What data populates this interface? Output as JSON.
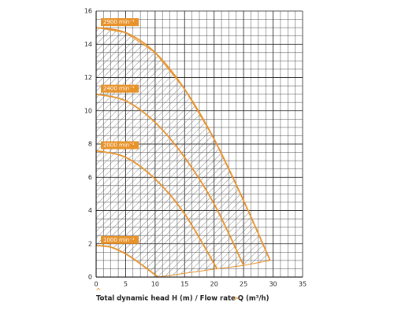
{
  "chart_data": {
    "type": "line",
    "x_label": "Total dynamic head H (m) / Flow rate Q (m³/h)",
    "xlim": [
      0,
      35
    ],
    "xticks": [
      0,
      5,
      10,
      15,
      20,
      25,
      30,
      35
    ],
    "ylim": [
      0,
      16
    ],
    "yticks": [
      0,
      2,
      4,
      6,
      8,
      10,
      12,
      14,
      16
    ],
    "grid": true,
    "series": [
      {
        "name": "2900 min⁻¹",
        "color": "#e8922a",
        "x": [
          0,
          5,
          10,
          15,
          20,
          25,
          29.5
        ],
        "values": [
          15,
          14.7,
          13.5,
          11.3,
          8.3,
          4.6,
          1
        ]
      },
      {
        "name": "2400 min⁻¹",
        "color": "#e8922a",
        "x": [
          0,
          5,
          10,
          15,
          20,
          25
        ],
        "values": [
          11,
          10.6,
          9.3,
          7.2,
          4.4,
          0.7
        ]
      },
      {
        "name": "2000 min⁻¹",
        "color": "#e8922a",
        "x": [
          0,
          5,
          10,
          15,
          20.5
        ],
        "values": [
          7.6,
          7.2,
          5.9,
          3.8,
          0.5
        ]
      },
      {
        "name": "1000 min⁻¹",
        "color": "#e8922a",
        "x": [
          0,
          2.5,
          5,
          7.5,
          10.5
        ],
        "values": [
          1.9,
          1.8,
          1.4,
          0.8,
          0
        ]
      }
    ]
  }
}
